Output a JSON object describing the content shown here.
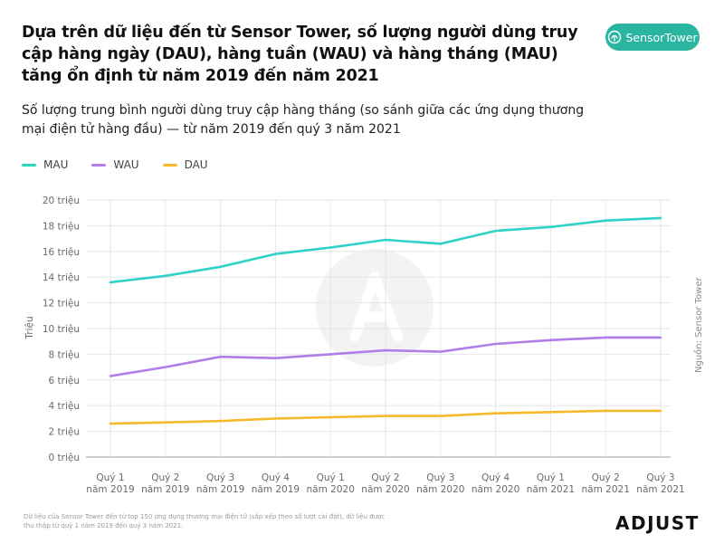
{
  "header": {
    "title": "Dựa trên dữ liệu đến từ Sensor Tower, số lượng người dùng truy cập hàng ngày (DAU), hàng tuần (WAU) và hàng tháng (MAU) tăng ổn định từ năm 2019 đến năm 2021",
    "subtitle": "Số lượng trung bình người dùng truy cập hàng tháng (so sánh giữa các ứng dụng thương mại điện tử hàng đầu) — từ năm 2019 đến quý 3 năm 2021",
    "badge_label": "SensorTower"
  },
  "source_label": "Nguồn: Sensor Tower",
  "footnote": "Dữ liệu của Sensor Tower đến từ top 150 ứng dụng thương mại điện tử (sắp xếp theo số lượt cài đặt), dữ liệu được thu thập từ quý 1 năm 2019 đến quý 3 năm 2021.",
  "logo_text": "ADJUST",
  "colors": {
    "MAU": "#2ed3c6",
    "WAU": "#b07ee8",
    "DAU": "#f7b92b",
    "badge": "#2ab5a0"
  },
  "chart_data": {
    "type": "line",
    "ylabel": "Triệu",
    "xlabel": "",
    "ylim": [
      0,
      20
    ],
    "yticks": [
      "0 triệu",
      "2 triệu",
      "4 triệu",
      "6 triệu",
      "8 triệu",
      "10 triệu",
      "12 triệu",
      "14 triệu",
      "16 triệu",
      "18 triệu",
      "20 triệu"
    ],
    "grid": true,
    "legend_position": "top-left",
    "categories": [
      [
        "Quý 1",
        "năm 2019"
      ],
      [
        "Quý 2",
        "năm 2019"
      ],
      [
        "Quý 3",
        "năm 2019"
      ],
      [
        "Quý 4",
        "năm 2019"
      ],
      [
        "Quý 1",
        "năm 2020"
      ],
      [
        "Quý 2",
        "năm 2020"
      ],
      [
        "Quý 3",
        "năm 2020"
      ],
      [
        "Quý 4",
        "năm 2020"
      ],
      [
        "Quý 1",
        "năm 2021"
      ],
      [
        "Quý 2",
        "năm 2021"
      ],
      [
        "Quý 3",
        "năm 2021"
      ]
    ],
    "series": [
      {
        "name": "MAU",
        "values": [
          13.6,
          14.1,
          14.8,
          15.8,
          16.3,
          16.9,
          16.6,
          17.6,
          17.9,
          18.4,
          18.6
        ]
      },
      {
        "name": "WAU",
        "values": [
          6.3,
          7.0,
          7.8,
          7.7,
          8.0,
          8.3,
          8.2,
          8.8,
          9.1,
          9.3,
          9.3
        ]
      },
      {
        "name": "DAU",
        "values": [
          2.6,
          2.7,
          2.8,
          3.0,
          3.1,
          3.2,
          3.2,
          3.4,
          3.5,
          3.6,
          3.6
        ]
      }
    ]
  }
}
